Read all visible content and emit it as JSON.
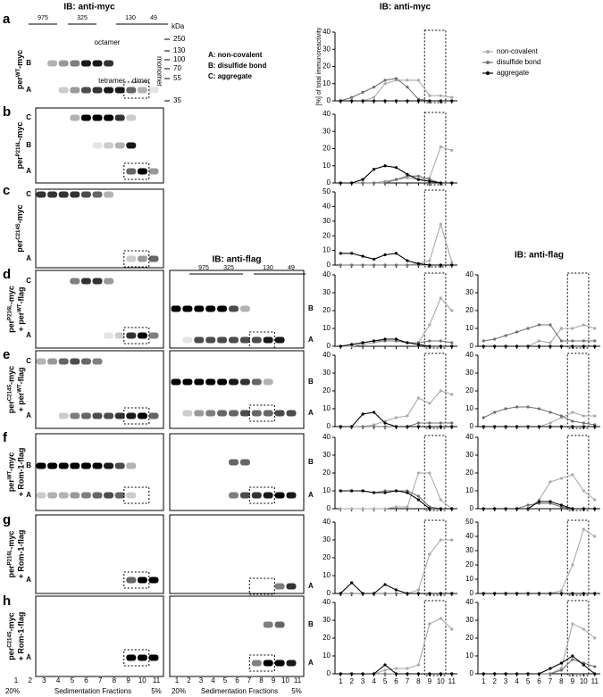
{
  "figure": {
    "panel_letters": [
      "a",
      "b",
      "c",
      "d",
      "e",
      "f",
      "g",
      "h"
    ],
    "blot_titles": [
      "IB: anti-myc",
      "IB: anti-flag"
    ],
    "fraction_headers": [
      975,
      325,
      130,
      49
    ],
    "kda_label": "kDa",
    "kda_markers": [
      250,
      130,
      100,
      70,
      55,
      35
    ],
    "monomer": "monomer",
    "band_names": [
      "octamer",
      "tetramer",
      "dimer"
    ],
    "key": [
      "A: non-covalent",
      "B: disulfide bond",
      "C: aggregate"
    ],
    "rows": [
      {
        "construct": [
          [
            "per",
            "WT",
            "-myc"
          ]
        ],
        "left_marks": [
          "B",
          "A"
        ]
      },
      {
        "construct": [
          [
            "per",
            "P216L",
            "-myc"
          ]
        ],
        "left_marks": [
          "C",
          "B",
          "A"
        ]
      },
      {
        "construct": [
          [
            "per",
            "C214S",
            "-myc"
          ]
        ],
        "left_marks": [
          "C",
          "A"
        ]
      },
      {
        "construct": [
          [
            "per",
            "P216L",
            "-myc"
          ],
          [
            "+ per",
            "WT",
            "-flag"
          ]
        ],
        "left_marks": [
          "C",
          "A"
        ],
        "mid_marks": [
          "B",
          "A"
        ]
      },
      {
        "construct": [
          [
            "per",
            "C214S",
            "-myc"
          ],
          [
            "+ per",
            "WT",
            "-flag"
          ]
        ],
        "left_marks": [
          "C",
          "A"
        ],
        "mid_marks": [
          "B",
          "A"
        ]
      },
      {
        "construct": [
          [
            "per",
            "WT",
            "-myc"
          ],
          [
            "+ Rom-1-flag"
          ]
        ],
        "left_marks": [
          "B",
          "A"
        ],
        "mid_marks": [
          "B",
          "A"
        ]
      },
      {
        "construct": [
          [
            "per",
            "P216L",
            "-myc"
          ],
          [
            "+ Rom-1-flag"
          ]
        ],
        "left_marks": [
          "A"
        ],
        "mid_marks": [
          "A"
        ]
      },
      {
        "construct": [
          [
            "per",
            "C214S",
            "-myc"
          ],
          [
            "+ Rom-1-flag"
          ]
        ],
        "left_marks": [
          "A"
        ],
        "mid_marks": [
          "B",
          "A"
        ]
      }
    ],
    "fractions": [
      1,
      2,
      3,
      4,
      5,
      6,
      7,
      8,
      9,
      10,
      11
    ],
    "gradient_top": "20%",
    "axis_label": "Sedimentation Fractions",
    "gradient_bottom": "5%"
  },
  "chart_data": [
    {
      "type": "line",
      "title": "IB: anti-myc",
      "ylabel": "[%] of total immunoreactivity",
      "legend": "upper right",
      "x": [
        1,
        2,
        3,
        4,
        5,
        6,
        7,
        8,
        9,
        10,
        11
      ],
      "xlim": [
        0.5,
        11.5
      ],
      "ylim": [
        0,
        40
      ],
      "yticks": [
        0,
        10,
        20,
        30,
        40
      ],
      "series": [
        {
          "name": "non-covalent",
          "color": "#aaaaaa",
          "values": [
            0,
            0,
            0,
            2,
            10,
            12,
            12,
            12,
            3,
            3,
            2
          ]
        },
        {
          "name": "disulfide bond",
          "color": "#707070",
          "values": [
            0,
            2,
            5,
            8,
            12,
            13,
            8,
            1,
            0,
            0,
            0
          ]
        },
        {
          "name": "aggregate",
          "color": "#000000",
          "values": [
            0,
            0,
            0,
            0,
            0,
            0,
            0,
            0,
            0,
            0,
            0
          ]
        }
      ]
    },
    {
      "type": "line",
      "x": [
        1,
        2,
        3,
        4,
        5,
        6,
        7,
        8,
        9,
        10,
        11
      ],
      "xlim": [
        0.5,
        11.5
      ],
      "ylim": [
        0,
        40
      ],
      "yticks": [
        0,
        10,
        20,
        30,
        40
      ],
      "series": [
        {
          "color": "#aaaaaa",
          "values": [
            0,
            0,
            0,
            0,
            1,
            2,
            3,
            2,
            3,
            21,
            19
          ]
        },
        {
          "color": "#707070",
          "values": [
            0,
            0,
            0,
            0,
            0,
            2,
            4,
            4,
            2,
            0,
            0
          ]
        },
        {
          "color": "#000000",
          "values": [
            0,
            0,
            2,
            8,
            10,
            9,
            5,
            2,
            1,
            0,
            0
          ]
        }
      ]
    },
    {
      "type": "line",
      "x": [
        1,
        2,
        3,
        4,
        5,
        6,
        7,
        8,
        9,
        10,
        11
      ],
      "xlim": [
        0.5,
        11.5
      ],
      "ylim": [
        0,
        50
      ],
      "yticks": [
        0,
        10,
        20,
        30,
        40,
        50
      ],
      "series": [
        {
          "color": "#aaaaaa",
          "values": [
            0,
            0,
            0,
            0,
            0,
            0,
            0,
            1,
            3,
            28,
            2
          ]
        },
        {
          "color": "#707070",
          "values": [
            0,
            0,
            0,
            0,
            0,
            0,
            0,
            0,
            0,
            0,
            0
          ]
        },
        {
          "color": "#000000",
          "values": [
            8,
            8,
            6,
            4,
            7,
            8,
            3,
            1,
            0,
            0,
            0
          ]
        }
      ]
    },
    {
      "type": "line",
      "x": [
        1,
        2,
        3,
        4,
        5,
        6,
        7,
        8,
        9,
        10,
        11
      ],
      "xlim": [
        0.5,
        11.5
      ],
      "ylim": [
        0,
        40
      ],
      "yticks": [
        0,
        10,
        20,
        30,
        40
      ],
      "series": [
        {
          "color": "#aaaaaa",
          "values": [
            0,
            0,
            1,
            2,
            3,
            3,
            2,
            2,
            12,
            27,
            20
          ]
        },
        {
          "color": "#707070",
          "values": [
            0,
            1,
            2,
            3,
            3,
            3,
            2,
            2,
            3,
            3,
            2
          ]
        },
        {
          "color": "#000000",
          "values": [
            0,
            1,
            2,
            3,
            4,
            4,
            2,
            1,
            0,
            0,
            0
          ]
        }
      ]
    },
    {
      "type": "line",
      "title": "IB: anti-flag",
      "x": [
        1,
        2,
        3,
        4,
        5,
        6,
        7,
        8,
        9,
        10,
        11
      ],
      "xlim": [
        0.5,
        11.5
      ],
      "ylim": [
        0,
        40
      ],
      "yticks": [
        0,
        10,
        20,
        30,
        40
      ],
      "series": [
        {
          "color": "#aaaaaa",
          "values": [
            0,
            0,
            0,
            0,
            0,
            3,
            2,
            10,
            10,
            12,
            10
          ]
        },
        {
          "color": "#707070",
          "values": [
            3,
            4,
            6,
            8,
            10,
            12,
            12,
            3,
            3,
            3,
            3
          ]
        },
        {
          "color": "#000000",
          "values": [
            0,
            0,
            0,
            0,
            0,
            0,
            0,
            0,
            0,
            0,
            0
          ]
        }
      ]
    },
    {
      "type": "line",
      "x": [
        1,
        2,
        3,
        4,
        5,
        6,
        7,
        8,
        9,
        10,
        11
      ],
      "xlim": [
        0.5,
        11.5
      ],
      "ylim": [
        0,
        40
      ],
      "yticks": [
        0,
        10,
        20,
        30,
        40
      ],
      "series": [
        {
          "color": "#aaaaaa",
          "values": [
            0,
            0,
            0,
            1,
            3,
            5,
            6,
            16,
            13,
            20,
            18
          ]
        },
        {
          "color": "#707070",
          "values": [
            0,
            0,
            0,
            0,
            0,
            0,
            0,
            2,
            2,
            2,
            2
          ]
        },
        {
          "color": "#000000",
          "values": [
            0,
            0,
            7,
            8,
            2,
            0,
            0,
            0,
            0,
            0,
            0
          ]
        }
      ]
    },
    {
      "type": "line",
      "x": [
        1,
        2,
        3,
        4,
        5,
        6,
        7,
        8,
        9,
        10,
        11
      ],
      "xlim": [
        0.5,
        11.5
      ],
      "ylim": [
        0,
        40
      ],
      "yticks": [
        0,
        10,
        20,
        30,
        40
      ],
      "series": [
        {
          "color": "#aaaaaa",
          "values": [
            0,
            0,
            0,
            0,
            0,
            0,
            2,
            5,
            8,
            6,
            6
          ]
        },
        {
          "color": "#707070",
          "values": [
            5,
            8,
            10,
            11,
            11,
            10,
            8,
            6,
            3,
            2,
            1
          ]
        },
        {
          "color": "#000000",
          "values": [
            0,
            0,
            0,
            0,
            0,
            0,
            0,
            0,
            0,
            0,
            0
          ]
        }
      ]
    },
    {
      "type": "line",
      "x": [
        1,
        2,
        3,
        4,
        5,
        6,
        7,
        8,
        9,
        10,
        11
      ],
      "xlim": [
        0.5,
        11.5
      ],
      "ylim": [
        0,
        40
      ],
      "yticks": [
        0,
        10,
        20,
        30,
        40
      ],
      "series": [
        {
          "color": "#aaaaaa",
          "values": [
            0,
            0,
            0,
            0,
            0,
            1,
            1,
            20,
            20,
            5,
            0
          ]
        },
        {
          "color": "#707070",
          "values": [
            10,
            10,
            10,
            9,
            10,
            10,
            10,
            7,
            1,
            0,
            0
          ]
        },
        {
          "color": "#000000",
          "values": [
            10,
            10,
            10,
            9,
            9,
            10,
            9,
            5,
            0,
            0,
            0
          ]
        }
      ]
    },
    {
      "type": "line",
      "x": [
        1,
        2,
        3,
        4,
        5,
        6,
        7,
        8,
        9,
        10,
        11
      ],
      "xlim": [
        0.5,
        11.5
      ],
      "ylim": [
        0,
        40
      ],
      "yticks": [
        0,
        10,
        20,
        30,
        40
      ],
      "series": [
        {
          "color": "#aaaaaa",
          "values": [
            0,
            0,
            0,
            0,
            0,
            5,
            15,
            17,
            19,
            10,
            5
          ]
        },
        {
          "color": "#707070",
          "values": [
            0,
            0,
            0,
            0,
            2,
            3,
            3,
            1,
            0,
            0,
            0
          ]
        },
        {
          "color": "#000000",
          "values": [
            0,
            0,
            0,
            0,
            0,
            4,
            4,
            2,
            0,
            0,
            0
          ]
        }
      ]
    },
    {
      "type": "line",
      "x": [
        1,
        2,
        3,
        4,
        5,
        6,
        7,
        8,
        9,
        10,
        11
      ],
      "xlim": [
        0.5,
        11.5
      ],
      "ylim": [
        0,
        40
      ],
      "yticks": [
        0,
        10,
        20,
        30,
        40
      ],
      "series": [
        {
          "color": "#aaaaaa",
          "values": [
            0,
            0,
            0,
            0,
            0,
            0,
            0,
            2,
            22,
            30,
            30
          ]
        },
        {
          "color": "#707070",
          "values": [
            0,
            0,
            0,
            0,
            0,
            0,
            0,
            0,
            0,
            0,
            0
          ]
        },
        {
          "color": "#000000",
          "values": [
            0,
            6,
            0,
            0,
            5,
            2,
            0,
            0,
            0,
            0,
            0
          ]
        }
      ]
    },
    {
      "type": "line",
      "x": [
        1,
        2,
        3,
        4,
        5,
        6,
        7,
        8,
        9,
        10,
        11
      ],
      "xlim": [
        0.5,
        11.5
      ],
      "ylim": [
        0,
        50
      ],
      "yticks": [
        0,
        10,
        20,
        30,
        40,
        50
      ],
      "series": [
        {
          "color": "#aaaaaa",
          "values": [
            0,
            0,
            0,
            0,
            0,
            0,
            0,
            2,
            20,
            45,
            40
          ]
        },
        {
          "color": "#707070",
          "values": [
            0,
            0,
            0,
            0,
            0,
            0,
            0,
            0,
            0,
            0,
            0
          ]
        },
        {
          "color": "#000000",
          "values": [
            0,
            0,
            0,
            0,
            0,
            0,
            0,
            0,
            0,
            0,
            0
          ]
        }
      ]
    },
    {
      "type": "line",
      "x": [
        1,
        2,
        3,
        4,
        5,
        6,
        7,
        8,
        9,
        10,
        11
      ],
      "xlim": [
        0.5,
        11.5
      ],
      "ylim": [
        0,
        40
      ],
      "yticks": [
        0,
        10,
        20,
        30,
        40
      ],
      "xticks": [
        1,
        2,
        3,
        4,
        5,
        6,
        7,
        8,
        9,
        10,
        11
      ],
      "series": [
        {
          "color": "#aaaaaa",
          "values": [
            0,
            0,
            0,
            0,
            2,
            3,
            3,
            5,
            28,
            31,
            25
          ]
        },
        {
          "color": "#707070",
          "values": [
            0,
            0,
            0,
            0,
            0,
            0,
            0,
            0,
            0,
            0,
            0
          ]
        },
        {
          "color": "#000000",
          "values": [
            0,
            0,
            0,
            0,
            5,
            0,
            0,
            0,
            0,
            0,
            0
          ]
        }
      ]
    },
    {
      "type": "line",
      "x": [
        1,
        2,
        3,
        4,
        5,
        6,
        7,
        8,
        9,
        10,
        11
      ],
      "xlim": [
        0.5,
        11.5
      ],
      "ylim": [
        0,
        40
      ],
      "yticks": [
        0,
        10,
        20,
        30,
        40
      ],
      "xticks": [
        1,
        2,
        3,
        4,
        5,
        6,
        7,
        8,
        9,
        10,
        11
      ],
      "series": [
        {
          "color": "#aaaaaa",
          "values": [
            0,
            0,
            0,
            0,
            0,
            0,
            0,
            3,
            28,
            25,
            20
          ]
        },
        {
          "color": "#707070",
          "values": [
            0,
            0,
            0,
            0,
            0,
            0,
            0,
            2,
            8,
            6,
            4
          ]
        },
        {
          "color": "#000000",
          "values": [
            0,
            0,
            0,
            0,
            0,
            0,
            3,
            6,
            10,
            5,
            0
          ]
        }
      ]
    }
  ]
}
